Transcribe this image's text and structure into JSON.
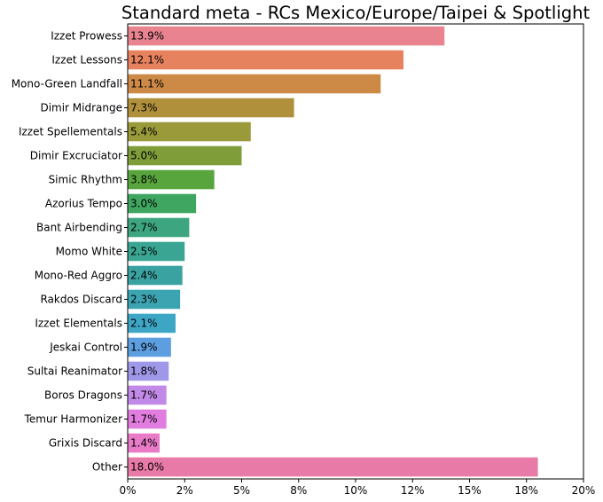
{
  "chart_data": {
    "type": "bar",
    "orientation": "horizontal",
    "title": "Standard meta - RCs Mexico/Europe/Taipei & Spotlight",
    "xlabel": "",
    "ylabel": "",
    "xlim": [
      0,
      20
    ],
    "grid": false,
    "x_ticks": [
      0,
      2.5,
      5,
      7.5,
      10,
      12.5,
      15,
      17.5,
      20
    ],
    "x_tick_labels": [
      "0%",
      "2%",
      "5%",
      "8%",
      "10%",
      "12%",
      "15%",
      "18%",
      "20%"
    ],
    "categories": [
      "Izzet Prowess",
      "Izzet Lessons",
      "Mono-Green Landfall",
      "Dimir Midrange",
      "Izzet Spellementals",
      "Dimir Excruciator",
      "Simic Rhythm",
      "Azorius Tempo",
      "Bant Airbending",
      "Momo White",
      "Mono-Red Aggro",
      "Rakdos Discard",
      "Izzet Elementals",
      "Jeskai Control",
      "Sultai Reanimator",
      "Boros Dragons",
      "Temur Harmonizer",
      "Grixis Discard",
      "Other"
    ],
    "values": [
      13.9,
      12.1,
      11.1,
      7.3,
      5.4,
      5.0,
      3.8,
      3.0,
      2.7,
      2.5,
      2.4,
      2.3,
      2.1,
      1.9,
      1.8,
      1.7,
      1.7,
      1.4,
      18.0
    ],
    "data_labels": [
      "13.9%",
      "12.1%",
      "11.1%",
      "7.3%",
      "5.4%",
      "5.0%",
      "3.8%",
      "3.0%",
      "2.7%",
      "2.5%",
      "2.4%",
      "2.3%",
      "2.1%",
      "1.9%",
      "1.8%",
      "1.7%",
      "1.7%",
      "1.4%",
      "18.0%"
    ],
    "colors": [
      "#e8838f",
      "#e7825f",
      "#cd8a47",
      "#b0903b",
      "#9a9a3b",
      "#7f9e3a",
      "#58a43d",
      "#3ea660",
      "#3da57f",
      "#3aa592",
      "#3aa3a2",
      "#3ca3b1",
      "#3da6c4",
      "#5d9ee0",
      "#9f98e8",
      "#c28ae8",
      "#e27de0",
      "#e87ac8",
      "#e87aa8"
    ]
  }
}
